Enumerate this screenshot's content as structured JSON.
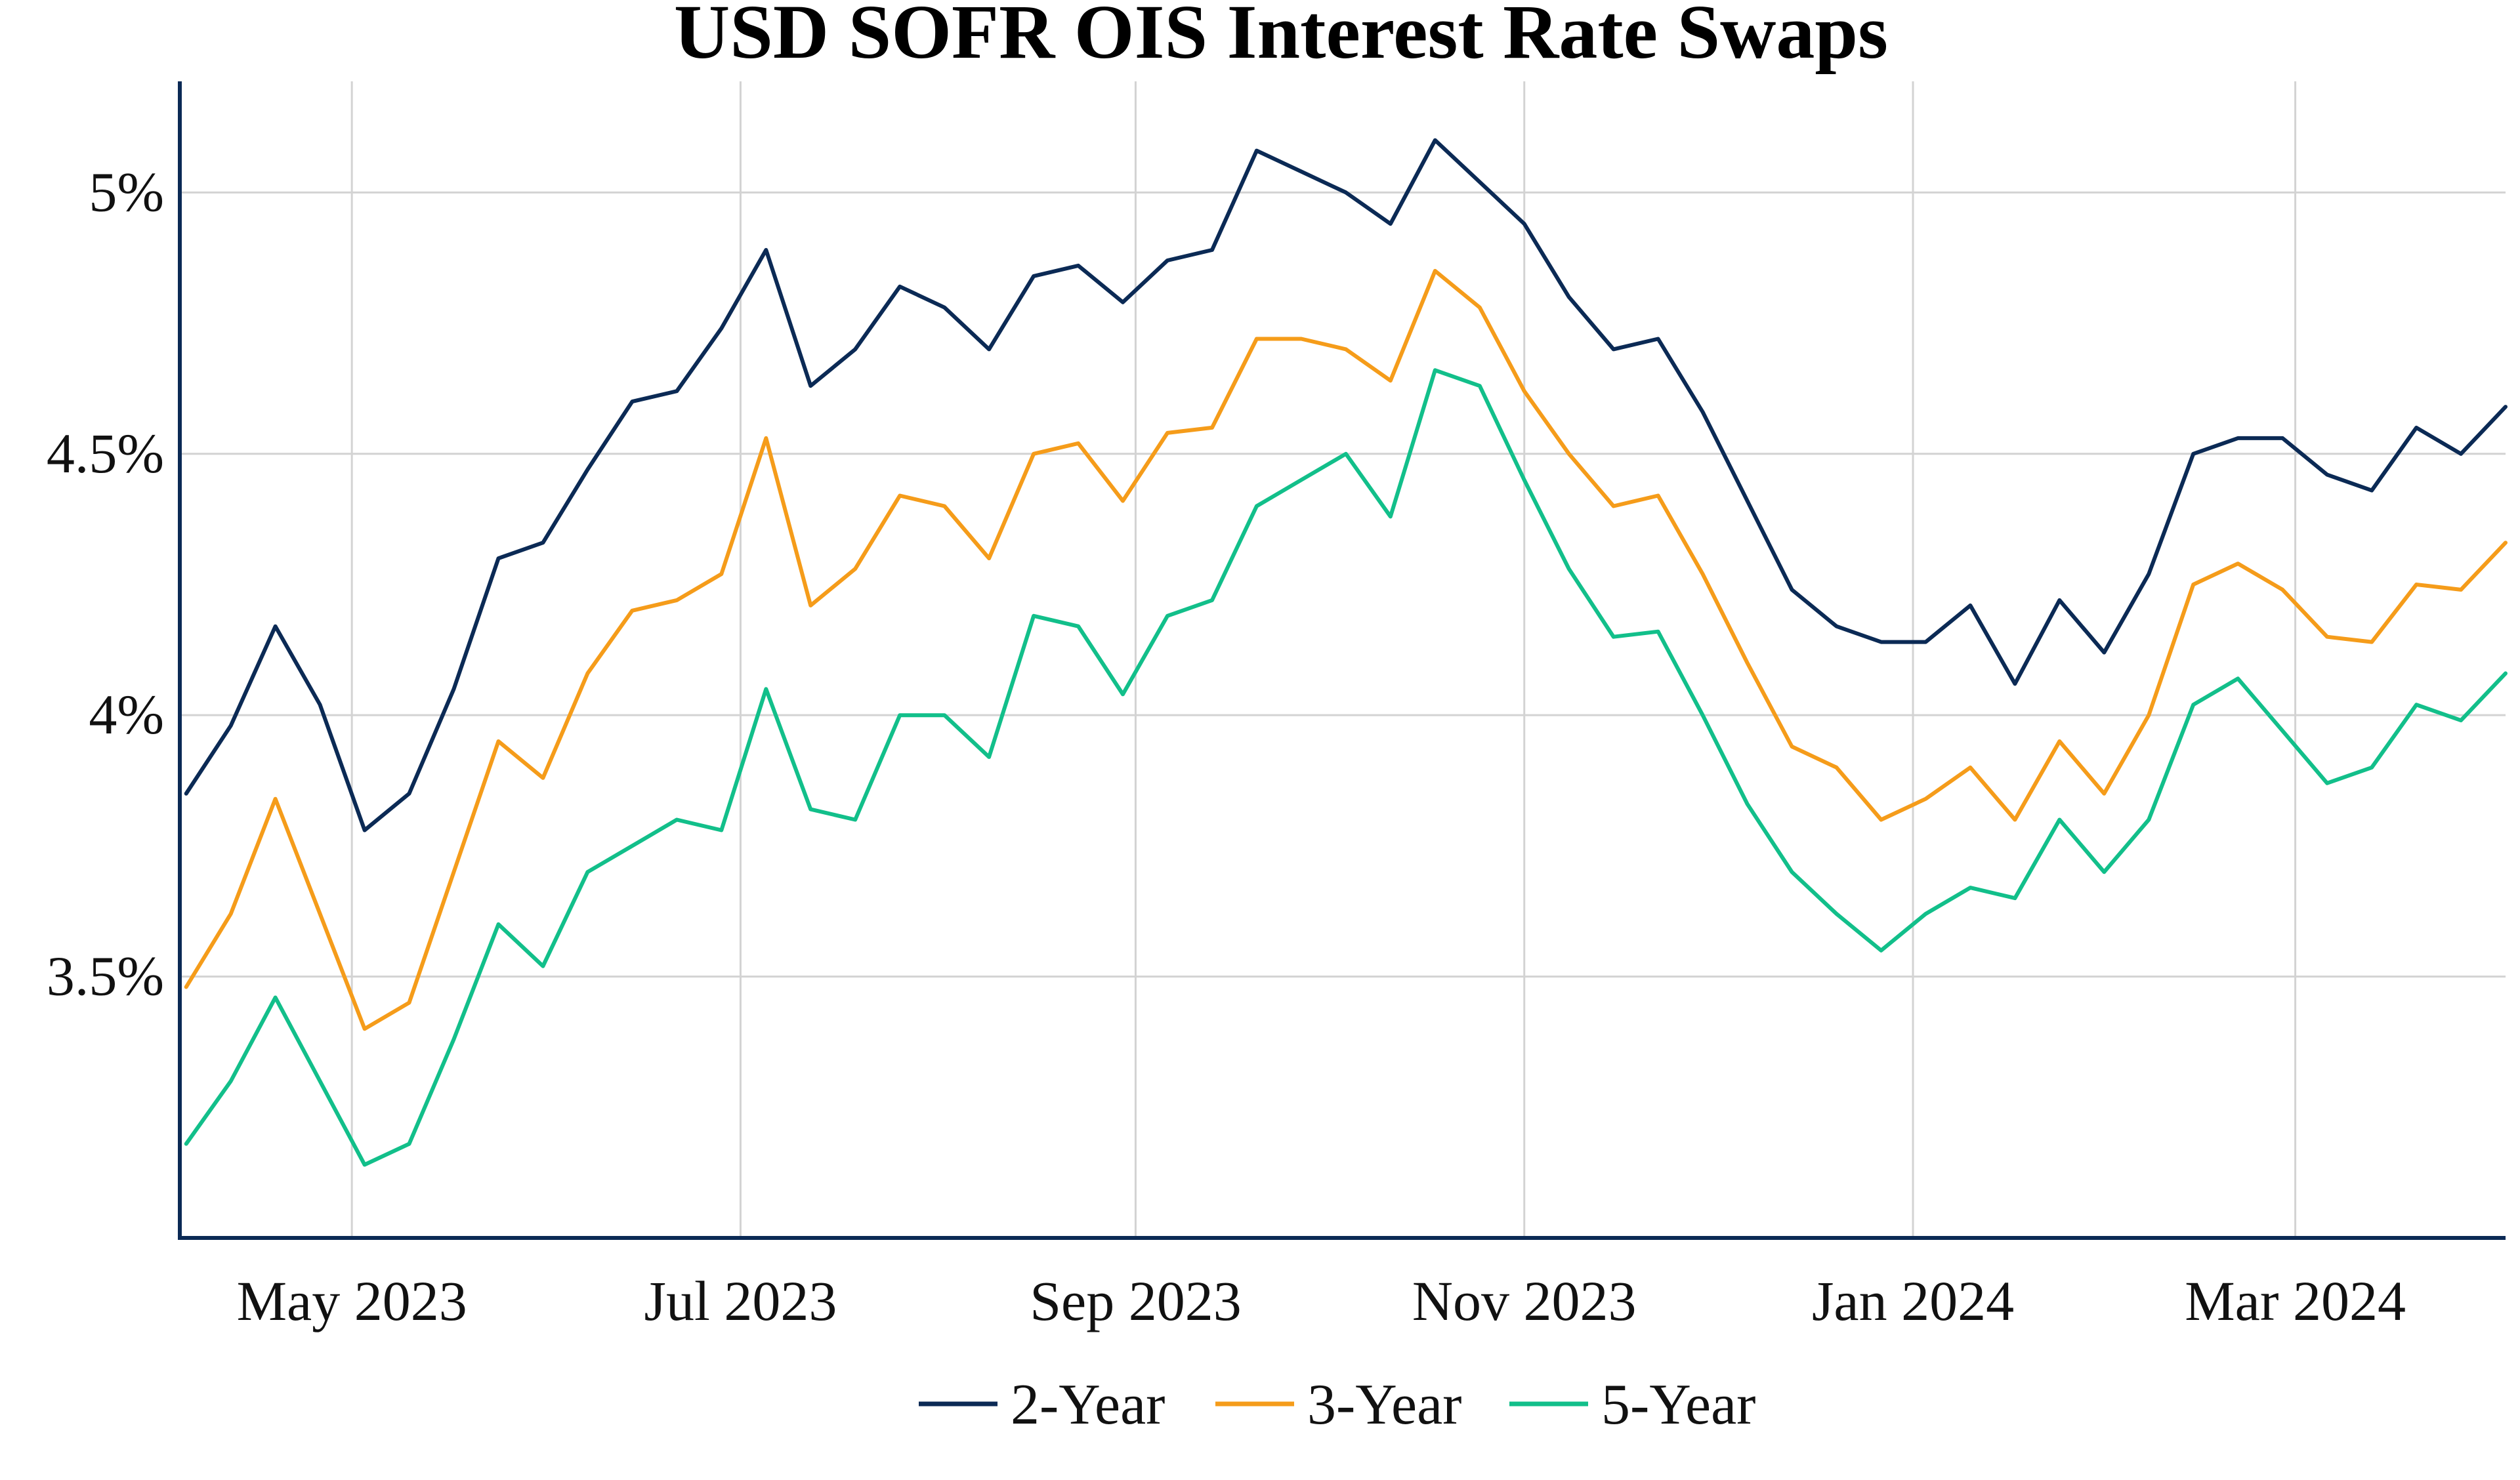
{
  "chart_data": {
    "type": "line",
    "title": "USD SOFR OIS Interest Rate Swaps",
    "xlabel": "",
    "ylabel": "",
    "xlim": [
      "2023-04-04",
      "2024-04-03"
    ],
    "ylim": [
      3.0,
      5.2
    ],
    "grid": true,
    "legend_position": "bottom",
    "x_ticks": [
      {
        "date": "2023-05-01",
        "label": "May 2023"
      },
      {
        "date": "2023-07-01",
        "label": "Jul 2023"
      },
      {
        "date": "2023-09-01",
        "label": "Sep 2023"
      },
      {
        "date": "2023-11-01",
        "label": "Nov 2023"
      },
      {
        "date": "2024-01-01",
        "label": "Jan 2024"
      },
      {
        "date": "2024-03-01",
        "label": "Mar 2024"
      }
    ],
    "y_ticks": [
      {
        "value": 3.5,
        "label": "3.5%"
      },
      {
        "value": 4.0,
        "label": "4%"
      },
      {
        "value": 4.5,
        "label": "4.5%"
      },
      {
        "value": 5.0,
        "label": "5%"
      }
    ],
    "x": [
      "2023-04-05",
      "2023-04-12",
      "2023-04-19",
      "2023-04-26",
      "2023-05-03",
      "2023-05-10",
      "2023-05-17",
      "2023-05-24",
      "2023-05-31",
      "2023-06-07",
      "2023-06-14",
      "2023-06-21",
      "2023-06-28",
      "2023-07-05",
      "2023-07-12",
      "2023-07-19",
      "2023-07-26",
      "2023-08-02",
      "2023-08-09",
      "2023-08-16",
      "2023-08-23",
      "2023-08-30",
      "2023-09-06",
      "2023-09-13",
      "2023-09-20",
      "2023-09-27",
      "2023-10-04",
      "2023-10-11",
      "2023-10-18",
      "2023-10-25",
      "2023-11-01",
      "2023-11-08",
      "2023-11-15",
      "2023-11-22",
      "2023-11-29",
      "2023-12-06",
      "2023-12-13",
      "2023-12-20",
      "2023-12-27",
      "2024-01-03",
      "2024-01-10",
      "2024-01-17",
      "2024-01-24",
      "2024-01-31",
      "2024-02-07",
      "2024-02-14",
      "2024-02-21",
      "2024-02-28",
      "2024-03-06",
      "2024-03-13",
      "2024-03-20",
      "2024-03-27",
      "2024-04-03"
    ],
    "series": [
      {
        "name": "2-Year",
        "color": "#0b2a55",
        "values": [
          3.85,
          3.98,
          4.17,
          4.02,
          3.78,
          3.85,
          4.05,
          4.3,
          4.33,
          4.47,
          4.6,
          4.62,
          4.74,
          4.89,
          4.63,
          4.7,
          4.82,
          4.78,
          4.7,
          4.84,
          4.86,
          4.79,
          4.87,
          4.89,
          5.08,
          5.04,
          5.0,
          4.94,
          5.1,
          5.02,
          4.94,
          4.8,
          4.7,
          4.72,
          4.58,
          4.41,
          4.24,
          4.17,
          4.14,
          4.14,
          4.21,
          4.06,
          4.22,
          4.12,
          4.27,
          4.5,
          4.53,
          4.53,
          4.46,
          4.43,
          4.55,
          4.5,
          4.59
        ]
      },
      {
        "name": "3-Year",
        "color": "#f59c1a",
        "values": [
          3.48,
          3.62,
          3.84,
          3.62,
          3.4,
          3.45,
          3.7,
          3.95,
          3.88,
          4.08,
          4.2,
          4.22,
          4.27,
          4.53,
          4.21,
          4.28,
          4.42,
          4.4,
          4.3,
          4.5,
          4.52,
          4.41,
          4.54,
          4.55,
          4.72,
          4.72,
          4.7,
          4.64,
          4.85,
          4.78,
          4.62,
          4.5,
          4.4,
          4.42,
          4.27,
          4.1,
          3.94,
          3.9,
          3.8,
          3.84,
          3.9,
          3.8,
          3.95,
          3.85,
          4.0,
          4.25,
          4.29,
          4.24,
          4.15,
          4.14,
          4.25,
          4.24,
          4.33
        ]
      },
      {
        "name": "5-Year",
        "color": "#12bf8a",
        "values": [
          3.18,
          3.3,
          3.46,
          3.3,
          3.14,
          3.18,
          3.38,
          3.6,
          3.52,
          3.7,
          3.75,
          3.8,
          3.78,
          4.05,
          3.82,
          3.8,
          4.0,
          4.0,
          3.92,
          4.19,
          4.17,
          4.04,
          4.19,
          4.22,
          4.4,
          4.45,
          4.5,
          4.38,
          4.66,
          4.63,
          4.45,
          4.28,
          4.15,
          4.16,
          4.0,
          3.83,
          3.7,
          3.62,
          3.55,
          3.62,
          3.67,
          3.65,
          3.8,
          3.7,
          3.8,
          4.02,
          4.07,
          3.97,
          3.87,
          3.9,
          4.02,
          3.99,
          4.08
        ]
      }
    ]
  }
}
